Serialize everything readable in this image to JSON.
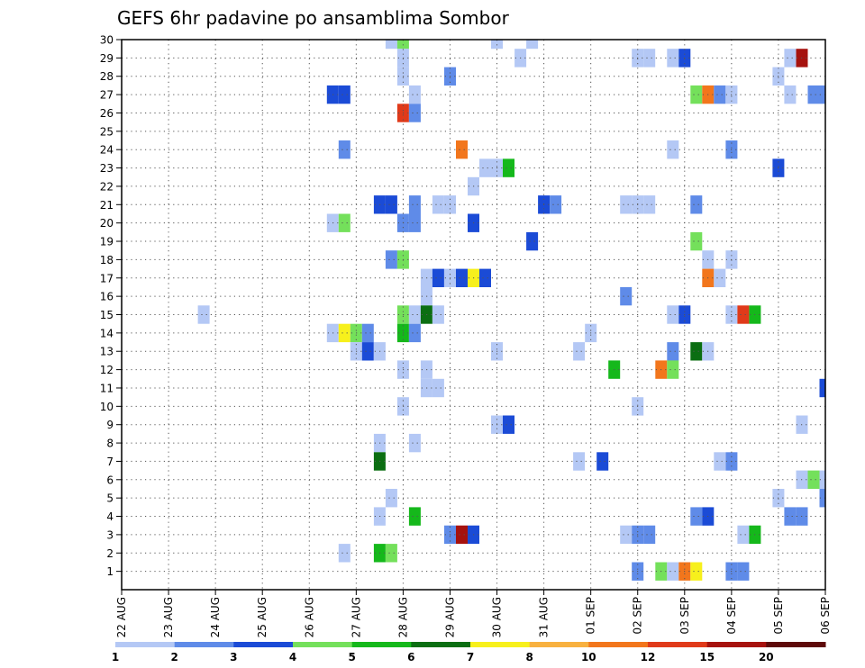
{
  "chart_data": {
    "type": "heatmap",
    "title": "GEFS 6hr padavine po ansamblima Sombor",
    "xlabel": "",
    "ylabel": "",
    "x_ticks": [
      "22 AUG",
      "23 AUG",
      "24 AUG",
      "25 AUG",
      "26 AUG",
      "27 AUG",
      "28 AUG",
      "29 AUG",
      "30 AUG",
      "31 AUG",
      "01 SEP",
      "02 SEP",
      "03 SEP",
      "04 SEP",
      "05 SEP",
      "06 SEP"
    ],
    "x_range": [
      0,
      15
    ],
    "y_ticks": [
      1,
      2,
      3,
      4,
      5,
      6,
      7,
      8,
      9,
      10,
      11,
      12,
      13,
      14,
      15,
      16,
      17,
      18,
      19,
      20,
      21,
      22,
      23,
      24,
      25,
      26,
      27,
      28,
      29,
      30
    ],
    "y_range": [
      0,
      30
    ],
    "grid": true,
    "legend": {
      "position": "bottom",
      "labels": [
        "1",
        "2",
        "3",
        "4",
        "5",
        "6",
        "7",
        "8",
        "10",
        "12",
        "15",
        "20"
      ],
      "colors": [
        "#b4c8f5",
        "#5f8be8",
        "#1b4bd6",
        "#74e05b",
        "#15b81b",
        "#0b6e12",
        "#f7f01c",
        "#f8b13f",
        "#f2761c",
        "#e03a1a",
        "#a6120e",
        "#5e0a0a"
      ]
    },
    "cell_width_steps": 0.25,
    "cells": [
      {
        "x": 5.75,
        "y": 30,
        "c": 1
      },
      {
        "x": 6.0,
        "y": 30,
        "c": 4
      },
      {
        "x": 8.0,
        "y": 30,
        "c": 1
      },
      {
        "x": 8.75,
        "y": 30,
        "c": 1
      },
      {
        "x": 6.0,
        "y": 29,
        "c": 1
      },
      {
        "x": 8.5,
        "y": 29,
        "c": 1
      },
      {
        "x": 11.0,
        "y": 29,
        "c": 1
      },
      {
        "x": 11.25,
        "y": 29,
        "c": 1
      },
      {
        "x": 11.75,
        "y": 29,
        "c": 1
      },
      {
        "x": 12.0,
        "y": 29,
        "c": 3
      },
      {
        "x": 14.25,
        "y": 29,
        "c": 1
      },
      {
        "x": 14.5,
        "y": 29,
        "c": 11
      },
      {
        "x": 6.0,
        "y": 28,
        "c": 1
      },
      {
        "x": 7.0,
        "y": 28,
        "c": 2
      },
      {
        "x": 14.0,
        "y": 28,
        "c": 1
      },
      {
        "x": 4.5,
        "y": 27,
        "c": 3
      },
      {
        "x": 4.75,
        "y": 27,
        "c": 3
      },
      {
        "x": 6.25,
        "y": 27,
        "c": 1
      },
      {
        "x": 12.25,
        "y": 27,
        "c": 4
      },
      {
        "x": 12.5,
        "y": 27,
        "c": 9
      },
      {
        "x": 12.75,
        "y": 27,
        "c": 2
      },
      {
        "x": 13.0,
        "y": 27,
        "c": 1
      },
      {
        "x": 14.25,
        "y": 27,
        "c": 1
      },
      {
        "x": 14.75,
        "y": 27,
        "c": 2
      },
      {
        "x": 15.0,
        "y": 27,
        "c": 2
      },
      {
        "x": 6.0,
        "y": 26,
        "c": 10
      },
      {
        "x": 6.25,
        "y": 26,
        "c": 2
      },
      {
        "x": 4.75,
        "y": 24,
        "c": 2
      },
      {
        "x": 7.25,
        "y": 24,
        "c": 9
      },
      {
        "x": 11.75,
        "y": 24,
        "c": 1
      },
      {
        "x": 13.0,
        "y": 24,
        "c": 2
      },
      {
        "x": 7.75,
        "y": 23,
        "c": 1
      },
      {
        "x": 8.0,
        "y": 23,
        "c": 1
      },
      {
        "x": 8.25,
        "y": 23,
        "c": 5
      },
      {
        "x": 14.0,
        "y": 23,
        "c": 3
      },
      {
        "x": 7.5,
        "y": 22,
        "c": 1
      },
      {
        "x": 5.5,
        "y": 21,
        "c": 3
      },
      {
        "x": 5.75,
        "y": 21,
        "c": 3
      },
      {
        "x": 6.25,
        "y": 21,
        "c": 2
      },
      {
        "x": 6.75,
        "y": 21,
        "c": 1
      },
      {
        "x": 7.0,
        "y": 21,
        "c": 1
      },
      {
        "x": 9.0,
        "y": 21,
        "c": 3
      },
      {
        "x": 9.25,
        "y": 21,
        "c": 2
      },
      {
        "x": 10.75,
        "y": 21,
        "c": 1
      },
      {
        "x": 11.0,
        "y": 21,
        "c": 1
      },
      {
        "x": 11.25,
        "y": 21,
        "c": 1
      },
      {
        "x": 12.25,
        "y": 21,
        "c": 2
      },
      {
        "x": 4.5,
        "y": 20,
        "c": 1
      },
      {
        "x": 4.75,
        "y": 20,
        "c": 4
      },
      {
        "x": 6.0,
        "y": 20,
        "c": 2
      },
      {
        "x": 6.25,
        "y": 20,
        "c": 2
      },
      {
        "x": 7.5,
        "y": 20,
        "c": 3
      },
      {
        "x": 8.75,
        "y": 19,
        "c": 3
      },
      {
        "x": 12.25,
        "y": 19,
        "c": 4
      },
      {
        "x": 5.75,
        "y": 18,
        "c": 2
      },
      {
        "x": 6.0,
        "y": 18,
        "c": 4
      },
      {
        "x": 12.5,
        "y": 18,
        "c": 1
      },
      {
        "x": 13.0,
        "y": 18,
        "c": 1
      },
      {
        "x": 6.5,
        "y": 17,
        "c": 1
      },
      {
        "x": 6.75,
        "y": 17,
        "c": 3
      },
      {
        "x": 7.0,
        "y": 17,
        "c": 1
      },
      {
        "x": 7.25,
        "y": 17,
        "c": 3
      },
      {
        "x": 7.5,
        "y": 17,
        "c": 7
      },
      {
        "x": 7.75,
        "y": 17,
        "c": 3
      },
      {
        "x": 12.5,
        "y": 17,
        "c": 9
      },
      {
        "x": 12.75,
        "y": 17,
        "c": 1
      },
      {
        "x": 6.5,
        "y": 16,
        "c": 1
      },
      {
        "x": 10.75,
        "y": 16,
        "c": 2
      },
      {
        "x": 1.75,
        "y": 15,
        "c": 1
      },
      {
        "x": 6.0,
        "y": 15,
        "c": 4
      },
      {
        "x": 6.25,
        "y": 15,
        "c": 1
      },
      {
        "x": 6.5,
        "y": 15,
        "c": 6
      },
      {
        "x": 6.75,
        "y": 15,
        "c": 1
      },
      {
        "x": 11.75,
        "y": 15,
        "c": 1
      },
      {
        "x": 12.0,
        "y": 15,
        "c": 3
      },
      {
        "x": 13.0,
        "y": 15,
        "c": 1
      },
      {
        "x": 13.25,
        "y": 15,
        "c": 10
      },
      {
        "x": 13.5,
        "y": 15,
        "c": 5
      },
      {
        "x": 4.5,
        "y": 14,
        "c": 1
      },
      {
        "x": 4.75,
        "y": 14,
        "c": 7
      },
      {
        "x": 5.0,
        "y": 14,
        "c": 4
      },
      {
        "x": 5.25,
        "y": 14,
        "c": 2
      },
      {
        "x": 6.0,
        "y": 14,
        "c": 5
      },
      {
        "x": 6.25,
        "y": 14,
        "c": 2
      },
      {
        "x": 10.0,
        "y": 14,
        "c": 1
      },
      {
        "x": 5.0,
        "y": 13,
        "c": 1
      },
      {
        "x": 5.25,
        "y": 13,
        "c": 3
      },
      {
        "x": 5.5,
        "y": 13,
        "c": 1
      },
      {
        "x": 8.0,
        "y": 13,
        "c": 1
      },
      {
        "x": 9.75,
        "y": 13,
        "c": 1
      },
      {
        "x": 11.75,
        "y": 13,
        "c": 2
      },
      {
        "x": 12.25,
        "y": 13,
        "c": 6
      },
      {
        "x": 12.5,
        "y": 13,
        "c": 1
      },
      {
        "x": 6.0,
        "y": 12,
        "c": 1
      },
      {
        "x": 6.5,
        "y": 12,
        "c": 1
      },
      {
        "x": 10.5,
        "y": 12,
        "c": 5
      },
      {
        "x": 11.5,
        "y": 12,
        "c": 9
      },
      {
        "x": 11.75,
        "y": 12,
        "c": 4
      },
      {
        "x": 6.5,
        "y": 11,
        "c": 1
      },
      {
        "x": 6.75,
        "y": 11,
        "c": 1
      },
      {
        "x": 15.0,
        "y": 11,
        "c": 3
      },
      {
        "x": 6.0,
        "y": 10,
        "c": 1
      },
      {
        "x": 11.0,
        "y": 10,
        "c": 1
      },
      {
        "x": 8.0,
        "y": 9,
        "c": 1
      },
      {
        "x": 8.25,
        "y": 9,
        "c": 3
      },
      {
        "x": 14.5,
        "y": 9,
        "c": 1
      },
      {
        "x": 5.5,
        "y": 8,
        "c": 1
      },
      {
        "x": 6.25,
        "y": 8,
        "c": 1
      },
      {
        "x": 5.5,
        "y": 7,
        "c": 6
      },
      {
        "x": 9.75,
        "y": 7,
        "c": 1
      },
      {
        "x": 10.25,
        "y": 7,
        "c": 3
      },
      {
        "x": 12.75,
        "y": 7,
        "c": 1
      },
      {
        "x": 13.0,
        "y": 7,
        "c": 2
      },
      {
        "x": 14.5,
        "y": 6,
        "c": 1
      },
      {
        "x": 14.75,
        "y": 6,
        "c": 4
      },
      {
        "x": 15.0,
        "y": 6,
        "c": 1
      },
      {
        "x": 5.75,
        "y": 5,
        "c": 1
      },
      {
        "x": 14.0,
        "y": 5,
        "c": 1
      },
      {
        "x": 15.0,
        "y": 5,
        "c": 2
      },
      {
        "x": 5.5,
        "y": 4,
        "c": 1
      },
      {
        "x": 6.25,
        "y": 4,
        "c": 5
      },
      {
        "x": 12.25,
        "y": 4,
        "c": 2
      },
      {
        "x": 12.5,
        "y": 4,
        "c": 3
      },
      {
        "x": 14.25,
        "y": 4,
        "c": 2
      },
      {
        "x": 14.5,
        "y": 4,
        "c": 2
      },
      {
        "x": 7.0,
        "y": 3,
        "c": 2
      },
      {
        "x": 7.25,
        "y": 3,
        "c": 11
      },
      {
        "x": 7.5,
        "y": 3,
        "c": 3
      },
      {
        "x": 10.75,
        "y": 3,
        "c": 1
      },
      {
        "x": 11.0,
        "y": 3,
        "c": 2
      },
      {
        "x": 11.25,
        "y": 3,
        "c": 2
      },
      {
        "x": 13.25,
        "y": 3,
        "c": 1
      },
      {
        "x": 13.5,
        "y": 3,
        "c": 5
      },
      {
        "x": 4.75,
        "y": 2,
        "c": 1
      },
      {
        "x": 5.5,
        "y": 2,
        "c": 5
      },
      {
        "x": 5.75,
        "y": 2,
        "c": 4
      },
      {
        "x": 11.0,
        "y": 1,
        "c": 2
      },
      {
        "x": 11.5,
        "y": 1,
        "c": 4
      },
      {
        "x": 11.75,
        "y": 1,
        "c": 1
      },
      {
        "x": 12.0,
        "y": 1,
        "c": 9
      },
      {
        "x": 12.25,
        "y": 1,
        "c": 7
      },
      {
        "x": 13.0,
        "y": 1,
        "c": 2
      },
      {
        "x": 13.25,
        "y": 1,
        "c": 2
      }
    ]
  }
}
